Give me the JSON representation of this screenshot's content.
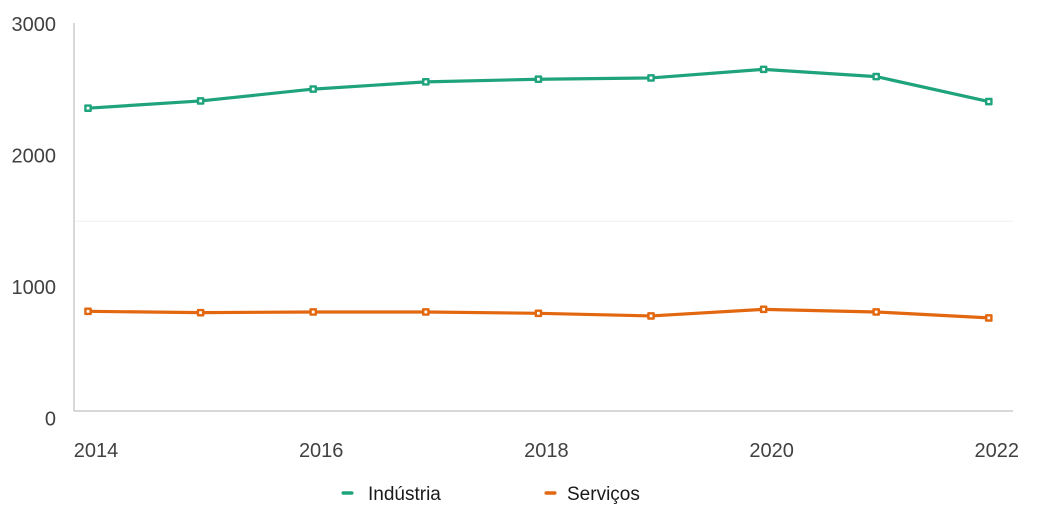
{
  "chart_data": {
    "type": "line",
    "categories": [
      2014,
      2015,
      2016,
      2017,
      2018,
      2019,
      2020,
      2021,
      2022
    ],
    "series": [
      {
        "name": "Indústria",
        "color": "#1fa37c",
        "values": [
          2360,
          2415,
          2505,
          2560,
          2580,
          2590,
          2655,
          2600,
          2410
        ]
      },
      {
        "name": "Serviços",
        "color": "#e2670e",
        "values": [
          815,
          805,
          810,
          810,
          800,
          780,
          830,
          810,
          765
        ]
      }
    ],
    "title": "",
    "xlabel": "",
    "ylabel": "",
    "ylim": [
      0,
      3000
    ],
    "yticks": [
      0,
      1000,
      2000,
      3000
    ],
    "ytick_labels": [
      "0",
      "1000",
      "2000",
      "3000"
    ],
    "xticks": [
      {
        "label": "2014",
        "index": 0
      },
      {
        "label": "2016",
        "index": 2
      },
      {
        "label": "2018",
        "index": 4
      },
      {
        "label": "2020",
        "index": 6
      },
      {
        "label": "2022",
        "index": 8
      }
    ],
    "gridline_values": [
      1500
    ],
    "grid": "minor-only",
    "legend_position": "bottom",
    "marker_shape": "square",
    "colors": {
      "axis_line": "#b3b3b3",
      "gridline": "#efefef",
      "axis_label_text": "#414141",
      "legend_text": "#1a1a1a",
      "background": "#ffffff"
    }
  }
}
